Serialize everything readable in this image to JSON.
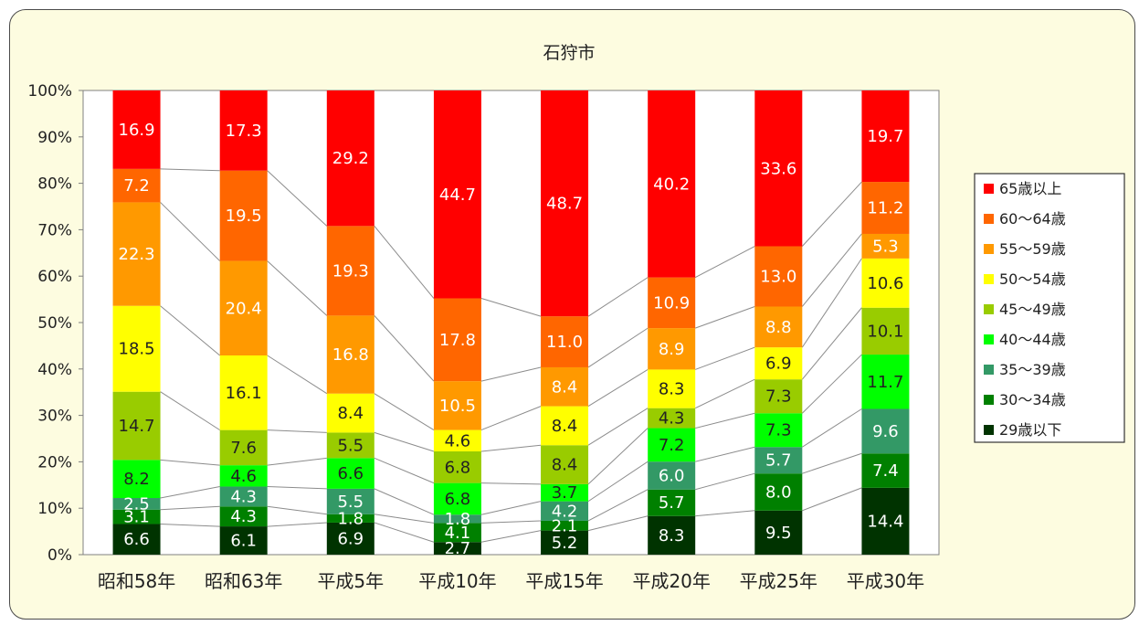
{
  "chart_data": {
    "type": "bar",
    "stacked": true,
    "percent": true,
    "title": "石狩市",
    "categories": [
      "昭和58年",
      "昭和63年",
      "平成5年",
      "平成10年",
      "平成15年",
      "平成20年",
      "平成25年",
      "平成30年"
    ],
    "y_ticks": [
      "0%",
      "10%",
      "20%",
      "30%",
      "40%",
      "50%",
      "60%",
      "70%",
      "80%",
      "90%",
      "100%"
    ],
    "ylim": [
      0,
      100
    ],
    "grid": false,
    "legend_position": "right",
    "series_lines": true,
    "series": [
      {
        "name": "29歳以下",
        "color": "#003300",
        "text_color": "#ffffff",
        "values": [
          6.6,
          6.1,
          6.9,
          2.7,
          5.2,
          8.3,
          9.5,
          14.4
        ]
      },
      {
        "name": "30～34歳",
        "color": "#008000",
        "text_color": "#ffffff",
        "values": [
          3.1,
          4.3,
          1.8,
          4.1,
          2.1,
          5.7,
          8.0,
          7.4
        ]
      },
      {
        "name": "35～39歳",
        "color": "#339966",
        "text_color": "#ffffff",
        "values": [
          2.5,
          4.3,
          5.5,
          1.8,
          4.2,
          6.0,
          5.7,
          9.6
        ]
      },
      {
        "name": "40～44歳",
        "color": "#00ff00",
        "text_color": "#222222",
        "values": [
          8.2,
          4.6,
          6.6,
          6.8,
          3.7,
          7.2,
          7.3,
          11.7
        ]
      },
      {
        "name": "45～49歳",
        "color": "#99cc00",
        "text_color": "#222222",
        "values": [
          14.7,
          7.6,
          5.5,
          6.8,
          8.4,
          4.3,
          7.3,
          10.1
        ]
      },
      {
        "name": "50～54歳",
        "color": "#ffff00",
        "text_color": "#222222",
        "values": [
          18.5,
          16.1,
          8.4,
          4.6,
          8.4,
          8.3,
          6.9,
          10.6
        ]
      },
      {
        "name": "55～59歳",
        "color": "#ff9900",
        "text_color": "#ffffff",
        "values": [
          22.3,
          20.4,
          16.8,
          10.5,
          8.4,
          8.9,
          8.8,
          5.3
        ]
      },
      {
        "name": "60～64歳",
        "color": "#ff6600",
        "text_color": "#ffffff",
        "values": [
          7.2,
          19.5,
          19.3,
          17.8,
          11.0,
          10.9,
          13.0,
          11.2
        ]
      },
      {
        "name": "65歳以上",
        "color": "#ff0000",
        "text_color": "#ffffff",
        "values": [
          16.9,
          17.3,
          29.2,
          44.7,
          48.7,
          40.2,
          33.6,
          19.7
        ]
      }
    ],
    "legend_order": [
      "65歳以上",
      "60～64歳",
      "55～59歳",
      "50～54歳",
      "45～49歳",
      "40～44歳",
      "35～39歳",
      "30～34歳",
      "29歳以下"
    ]
  }
}
